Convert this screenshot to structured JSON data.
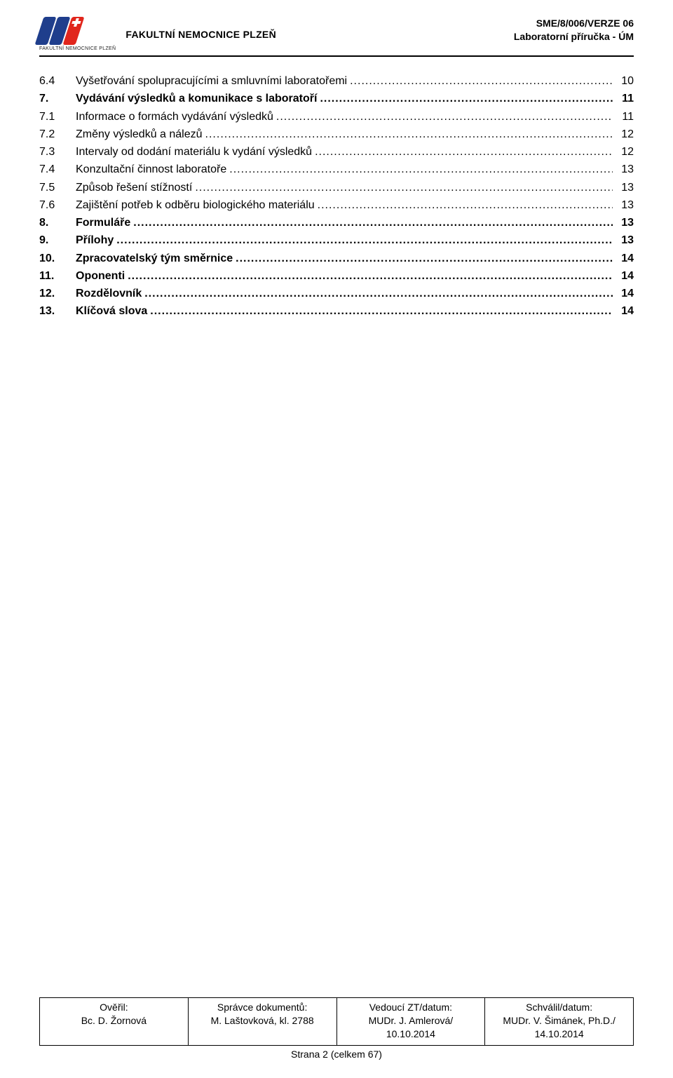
{
  "header": {
    "org_name": "FAKULTNÍ NEMOCNICE PLZEŇ",
    "logo_caption": "FAKULTNÍ NEMOCNICE PLZEŇ",
    "doc_code": "SME/8/006/VERZE 06",
    "doc_title": "Laboratorní příručka - ÚM",
    "logo_blue": "#1f3e8c",
    "logo_red": "#e1261c",
    "rule_color": "#000000"
  },
  "toc": {
    "leader_fontsize": 16,
    "entries": [
      {
        "num": "6.4",
        "title": "Vyšetřování spolupracujícími a smluvními laboratořemi",
        "page": "10",
        "level": "sub",
        "bold": false
      },
      {
        "num": "7.",
        "title": "Vydávání výsledků a komunikace s laboratoří",
        "page": "11",
        "level": "top",
        "bold": true
      },
      {
        "num": "7.1",
        "title": "Informace o formách vydávání výsledků",
        "page": "11",
        "level": "sub",
        "bold": false
      },
      {
        "num": "7.2",
        "title": "Změny výsledků a nálezů",
        "page": "12",
        "level": "sub",
        "bold": false
      },
      {
        "num": "7.3",
        "title": "Intervaly od dodání materiálu k vydání výsledků",
        "page": "12",
        "level": "sub",
        "bold": false
      },
      {
        "num": "7.4",
        "title": "Konzultační činnost laboratoře",
        "page": "13",
        "level": "sub",
        "bold": false
      },
      {
        "num": "7.5",
        "title": "Způsob řešení stížností",
        "page": "13",
        "level": "sub",
        "bold": false
      },
      {
        "num": "7.6",
        "title": "Zajištění potřeb k odběru biologického materiálu",
        "page": "13",
        "level": "sub",
        "bold": false
      },
      {
        "num": "8.",
        "title": "Formuláře",
        "page": "13",
        "level": "top",
        "bold": true
      },
      {
        "num": "9.",
        "title": "Přílohy",
        "page": "13",
        "level": "top",
        "bold": true
      },
      {
        "num": "10.",
        "title": "Zpracovatelský tým směrnice",
        "page": "14",
        "level": "top",
        "bold": true
      },
      {
        "num": "11.",
        "title": "Oponenti",
        "page": "14",
        "level": "top",
        "bold": true
      },
      {
        "num": "12.",
        "title": "Rozdělovník",
        "page": "14",
        "level": "top",
        "bold": true
      },
      {
        "num": "13.",
        "title": "Klíčová slova",
        "page": "14",
        "level": "top",
        "bold": true
      }
    ]
  },
  "footer": {
    "cells": [
      {
        "label": "Ověřil:",
        "value": "Bc. D. Žornová"
      },
      {
        "label": "Správce dokumentů:",
        "value": "M. Laštovková, kl. 2788"
      },
      {
        "label": "Vedoucí ZT/datum:",
        "value": "MUDr. J. Amlerová/\n10.10.2014"
      },
      {
        "label": "Schválil/datum:",
        "value": "MUDr. V. Šimánek, Ph.D./\n14.10.2014"
      }
    ],
    "page_number": "Strana 2 (celkem 67)"
  }
}
